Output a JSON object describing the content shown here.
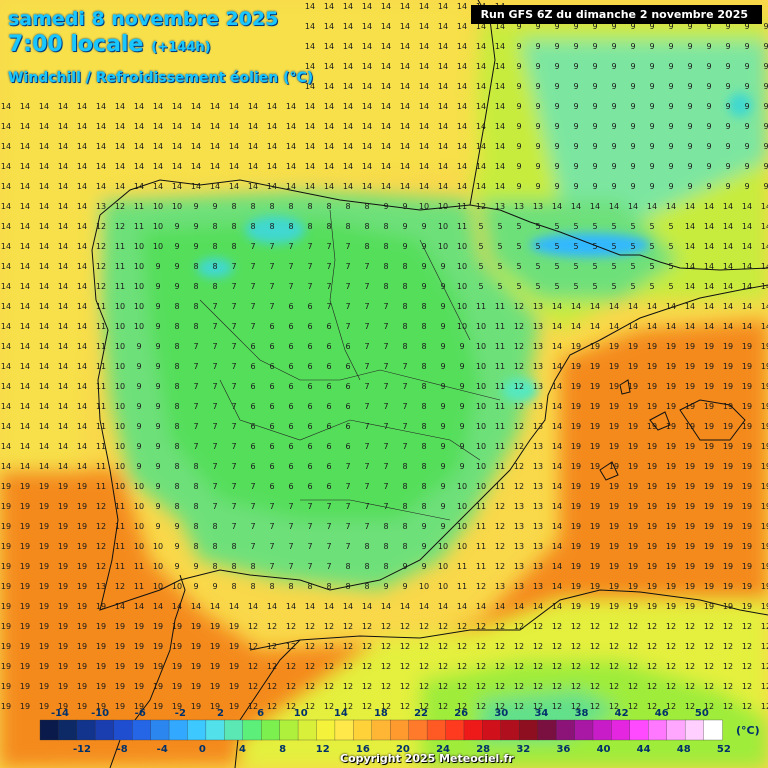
{
  "header": {
    "date_title": "samedi 8 novembre 2025",
    "time_title": "7:00 locale",
    "lead_time": "(+144h)",
    "parameter": "Windchill / Refroidissement éolien (°C)"
  },
  "run_info": "Run GFS 6Z du dimanche 2 novembre 2025",
  "copyright": "Copyright 2025 Meteociel.fr",
  "legend": {
    "unit": "(°C)",
    "top_labels": [
      "-14",
      "-10",
      "-6",
      "-2",
      "2",
      "6",
      "10",
      "14",
      "18",
      "22",
      "26",
      "30",
      "34",
      "38",
      "42",
      "46",
      "50"
    ],
    "bottom_labels": [
      "-12",
      "-8",
      "-4",
      "0",
      "4",
      "8",
      "12",
      "16",
      "20",
      "24",
      "28",
      "32",
      "36",
      "40",
      "44",
      "48",
      "52"
    ],
    "colors": [
      "#0a1a4a",
      "#0d2a66",
      "#12348c",
      "#1a3eb0",
      "#1f4fd0",
      "#2566e6",
      "#2b86f0",
      "#33a8ff",
      "#3dc8ff",
      "#52e0ea",
      "#5ce8b4",
      "#5cf07a",
      "#7cf04e",
      "#aef03c",
      "#d8f03a",
      "#f4f23a",
      "#ffe84a",
      "#ffd23a",
      "#ffb634",
      "#ff9a2e",
      "#ff7a2a",
      "#ff5a24",
      "#ff3a1e",
      "#ee1a1a",
      "#d0101a",
      "#b0101e",
      "#8e1020",
      "#7a1040",
      "#8c1478",
      "#a818a4",
      "#c81cc8",
      "#e426e0",
      "#ff4aff",
      "#ff78ff",
      "#ffa6ff",
      "#ffd0ff",
      "#ffffff"
    ]
  },
  "map": {
    "description_colors": {
      "warm": "#f48a1e",
      "mild": "#ffd23a",
      "cool": "#d8f03a",
      "cold": "#5ce88a",
      "coldest": "#33c8ff"
    }
  }
}
